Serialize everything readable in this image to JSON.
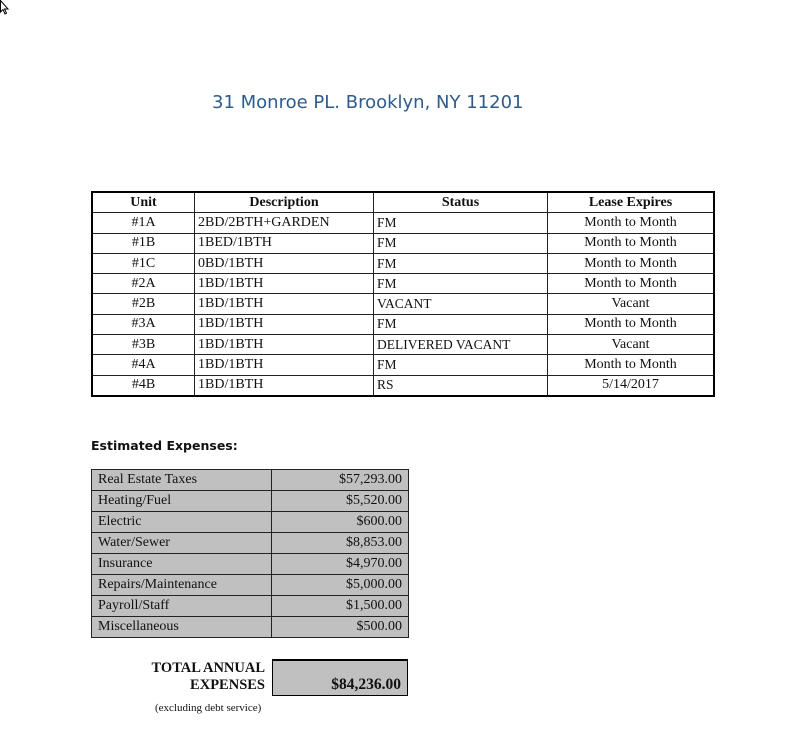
{
  "document": {
    "title": "31 Monroe PL.  Brooklyn, NY 11201"
  },
  "units_table": {
    "headers": [
      "Unit",
      "Description",
      "Status",
      "Lease Expires"
    ],
    "rows": [
      [
        "#1A",
        "2BD/2BTH+GARDEN",
        "FM",
        "Month to Month"
      ],
      [
        "#1B",
        "1BED/1BTH",
        "FM",
        "Month to Month"
      ],
      [
        "#1C",
        "0BD/1BTH",
        "FM",
        "Month to Month"
      ],
      [
        "#2A",
        "1BD/1BTH",
        "FM",
        "Month to Month"
      ],
      [
        "#2B",
        "1BD/1BTH",
        "VACANT",
        "Vacant"
      ],
      [
        "#3A",
        "1BD/1BTH",
        "FM",
        "Month to Month"
      ],
      [
        "#3B",
        "1BD/1BTH",
        "DELIVERED VACANT",
        "Vacant"
      ],
      [
        "#4A",
        "1BD/1BTH",
        "FM",
        "Month to Month"
      ],
      [
        "#4B",
        "1BD/1BTH",
        "RS",
        "5/14/2017"
      ]
    ]
  },
  "expenses": {
    "heading": "Estimated Expenses:",
    "rows": [
      [
        "Real Estate Taxes",
        "$57,293.00"
      ],
      [
        "Heating/Fuel",
        "$5,520.00"
      ],
      [
        "Electric",
        "$600.00"
      ],
      [
        "Water/Sewer",
        "$8,853.00"
      ],
      [
        "Insurance",
        "$4,970.00"
      ],
      [
        "Repairs/Maintenance",
        "$5,000.00"
      ],
      [
        "Payroll/Staff",
        "$1,500.00"
      ],
      [
        "Miscellaneous",
        "$500.00"
      ]
    ],
    "total_label_line1": "TOTAL ANNUAL",
    "total_label_line2": "EXPENSES",
    "total_value": "$84,236.00",
    "note": "(excluding debt service)"
  },
  "colors": {
    "title": "#2e5c8a",
    "expense_fill": "#c0c0c0"
  }
}
